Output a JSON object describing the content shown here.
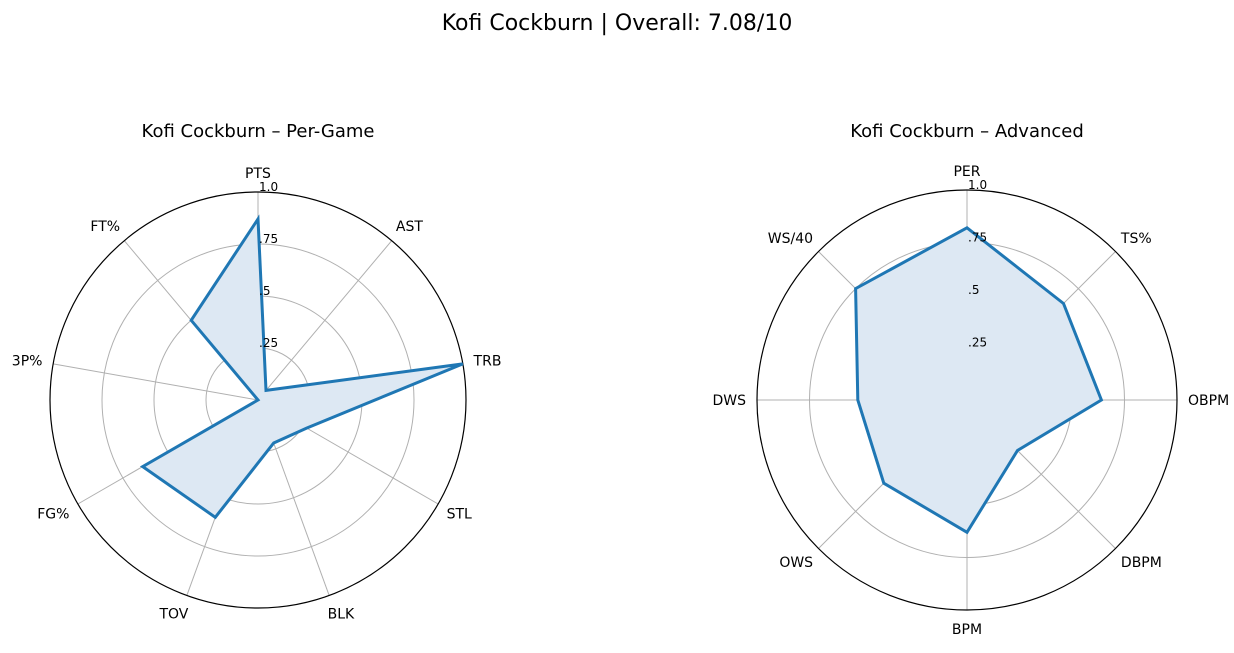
{
  "title": "Kofi Cockburn | Overall: 7.08/10",
  "colors": {
    "line": "#1f77b4",
    "fill": "#dde8f3",
    "grid": "#b0b0b0",
    "frame": "#000000"
  },
  "chart_data": [
    {
      "type": "radar",
      "title": "Kofi Cockburn – Per-Game",
      "categories": [
        "PTS",
        "AST",
        "TRB",
        "STL",
        "BLK",
        "TOV",
        "FG%",
        "3P%",
        "FT%"
      ],
      "values": [
        0.87,
        0.06,
        1.0,
        0.27,
        0.22,
        0.6,
        0.64,
        0.0,
        0.5
      ],
      "rlim": [
        0,
        1.0
      ],
      "rticks": [
        ".25",
        ".5",
        ".75",
        "1.0"
      ]
    },
    {
      "type": "radar",
      "title": "Kofi Cockburn – Advanced",
      "categories": [
        "PER",
        "TS%",
        "OBPM",
        "DBPM",
        "BPM",
        "OWS",
        "DWS",
        "WS/40"
      ],
      "values": [
        0.82,
        0.65,
        0.64,
        0.34,
        0.63,
        0.56,
        0.52,
        0.75
      ],
      "rlim": [
        0,
        1.0
      ],
      "rticks": [
        ".25",
        ".5",
        ".75",
        "1.0"
      ]
    }
  ]
}
